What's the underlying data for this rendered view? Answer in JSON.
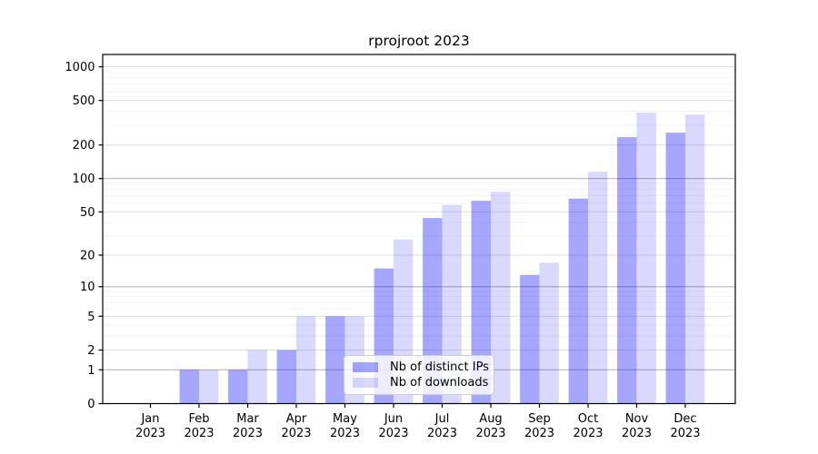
{
  "title": "rprojroot 2023",
  "chart_data": {
    "type": "bar",
    "title": "rprojroot 2023",
    "categories": [
      "Jan",
      "Feb",
      "Mar",
      "Apr",
      "May",
      "Jun",
      "Jul",
      "Aug",
      "Sep",
      "Oct",
      "Nov",
      "Dec"
    ],
    "x_year_label": "2023",
    "series": [
      {
        "name": "Nb of distinct IPs",
        "color": "rgba(0,0,255,0.35)",
        "values": [
          0,
          1,
          1,
          2,
          5,
          15,
          44,
          63,
          13,
          66,
          235,
          258
        ]
      },
      {
        "name": "Nb of downloads",
        "color": "rgba(0,0,255,0.15)",
        "values": [
          0,
          1,
          2,
          5,
          5,
          28,
          58,
          76,
          17,
          115,
          390,
          375
        ]
      }
    ],
    "y_ticks": [
      0,
      1,
      2,
      5,
      10,
      20,
      50,
      100,
      200,
      500,
      1000
    ],
    "y_minor_ticks": [
      3,
      4,
      6,
      7,
      8,
      9,
      30,
      40,
      60,
      70,
      80,
      90,
      300,
      400,
      600,
      700,
      800,
      900
    ],
    "scale": "log1p",
    "ylim": [
      0,
      1280
    ],
    "xlabel": "",
    "ylabel": "",
    "grid": true,
    "legend_position": "inside-bottom-center"
  },
  "colors": {
    "grid_minor": "#f2f2f2",
    "grid_regular": "#dedede",
    "grid_major_decade": "#b0b0b0",
    "spine": "#000000",
    "tick_text": "#000000",
    "bar_distinct_ips": "rgba(0,0,255,0.35)",
    "bar_downloads": "rgba(0,0,255,0.15)"
  }
}
